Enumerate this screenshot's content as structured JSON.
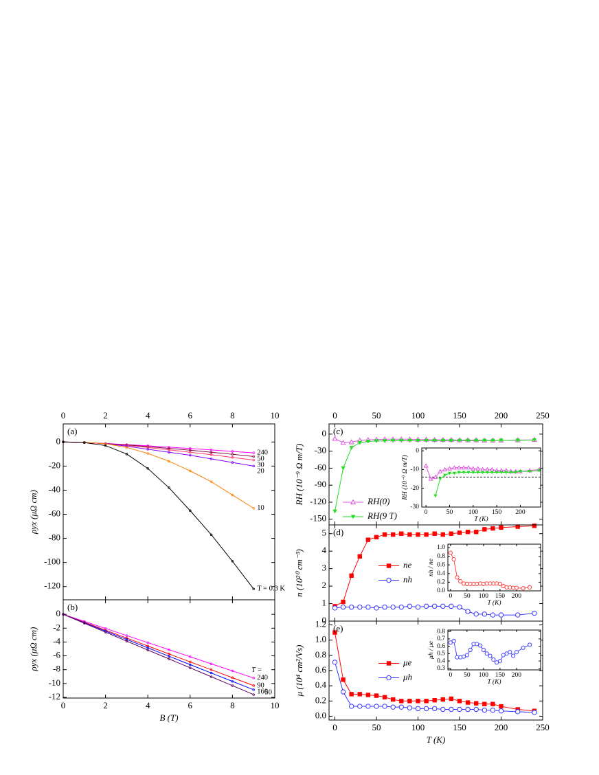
{
  "chart_data": [
    {
      "type": "line",
      "panel_label": "(a)",
      "ylabel": "ρyx (μΩ cm)",
      "x": [
        0,
        1,
        2,
        3,
        4,
        5,
        6,
        7,
        8,
        9
      ],
      "series": [
        {
          "name": "240",
          "color": "#ff00ff",
          "marker": "dot",
          "values": [
            0,
            -0.5,
            -1.2,
            -2.2,
            -3.2,
            -4.3,
            -5.4,
            -6.6,
            -7.8,
            -9
          ]
        },
        {
          "name": "50",
          "color": "#800040",
          "marker": "dot",
          "values": [
            0,
            -0.5,
            -1.3,
            -2.5,
            -3.8,
            -5.3,
            -6.8,
            -8.5,
            -10.2,
            -12
          ]
        },
        {
          "name": "30",
          "color": "#ff3366",
          "marker": "dot",
          "values": [
            0,
            -0.5,
            -1.5,
            -3,
            -4.5,
            -6.5,
            -8.5,
            -10.5,
            -12.8,
            -15
          ]
        },
        {
          "name": "20",
          "color": "#8000ff",
          "marker": "dot",
          "values": [
            0,
            -0.5,
            -1.5,
            -3.5,
            -6,
            -8.5,
            -11,
            -14,
            -17,
            -20
          ]
        },
        {
          "name": "10",
          "color": "#ff8000",
          "marker": "dot",
          "values": [
            0,
            -0.3,
            -1.5,
            -4.5,
            -9.5,
            -16,
            -24,
            -33,
            -44,
            -55
          ]
        },
        {
          "name": "T = 0.3 K",
          "color": "#000000",
          "marker": "dot",
          "values": [
            0,
            -0.5,
            -3,
            -10,
            -22,
            -38,
            -57,
            -77,
            -99,
            -122
          ]
        }
      ],
      "xlim": [
        0,
        10
      ],
      "ylim": [
        -131,
        15
      ],
      "xticks": [
        0,
        2,
        4,
        6,
        8,
        10
      ],
      "yticks": [
        0,
        -20,
        -40,
        -60,
        -80,
        -100,
        -120
      ]
    },
    {
      "type": "line",
      "panel_label": "(b)",
      "ylabel": "ρyx (μΩ cm)",
      "xlabel": "B (T)",
      "annotation": "T =",
      "x": [
        0,
        1,
        2,
        3,
        4,
        5,
        6,
        7,
        8,
        9
      ],
      "series": [
        {
          "name": "240",
          "color": "#ff00ff",
          "marker": "dot",
          "values": [
            0,
            -1.02,
            -2.04,
            -3.07,
            -4.09,
            -5.11,
            -6.13,
            -7.16,
            -8.18,
            -9.2
          ]
        },
        {
          "name": "90",
          "color": "#ff0000",
          "marker": "dot",
          "values": [
            0,
            -1.14,
            -2.29,
            -3.43,
            -4.58,
            -5.72,
            -6.87,
            -8.01,
            -9.16,
            -10.3
          ]
        },
        {
          "name": "160",
          "color": "#0000ff",
          "marker": "dot",
          "values": [
            0,
            -1.21,
            -2.42,
            -3.63,
            -4.84,
            -6.06,
            -7.27,
            -8.48,
            -9.69,
            -10.9
          ]
        },
        {
          "name": "50",
          "color": "#600060",
          "marker": "dot",
          "values": [
            0,
            -1.29,
            -2.58,
            -3.87,
            -5.16,
            -6.44,
            -7.73,
            -9.02,
            -10.31,
            -11.6
          ]
        }
      ],
      "xlim": [
        0,
        10
      ],
      "ylim": [
        -12.1,
        2.1
      ],
      "xticks": [
        0,
        2,
        4,
        6,
        8,
        10
      ],
      "yticks": [
        0,
        -2,
        -4,
        -6,
        -8,
        -10,
        -12
      ]
    },
    {
      "type": "line",
      "panel_label": "(c)",
      "ylabel": "RH (10⁻⁹ Ω m/T)",
      "legend": "lower left",
      "x": [
        0,
        10,
        20,
        30,
        40,
        50,
        60,
        70,
        80,
        90,
        100,
        110,
        120,
        130,
        140,
        150,
        160,
        170,
        180,
        190,
        200,
        220,
        240
      ],
      "series": [
        {
          "name": "RH(0)",
          "color": "#e050e0",
          "marker": "triangle-open",
          "values": [
            -8,
            -15,
            -14,
            -11,
            -10,
            -9.5,
            -9,
            -9,
            -9,
            -9,
            -9.5,
            -9.5,
            -10,
            -10,
            -10,
            -10.5,
            -10.5,
            -10.5,
            -11,
            -11,
            -11,
            -10.5,
            -10
          ]
        },
        {
          "name": "RH(9 T)",
          "color": "#22dd22",
          "marker": "triangle-down",
          "values": [
            -136,
            -60,
            -24,
            -15,
            -13,
            -12,
            -12,
            -11.5,
            -11.5,
            -11.5,
            -11.5,
            -11.5,
            -11.5,
            -11.5,
            -11.5,
            -11.5,
            -11.5,
            -11.5,
            -11.5,
            -11.5,
            -11,
            -11,
            -10.5
          ]
        }
      ],
      "xlim": [
        -7,
        250
      ],
      "ylim": [
        -160,
        18
      ],
      "xticks": [
        0,
        50,
        100,
        150,
        200,
        250
      ],
      "yticks": [
        0,
        -30,
        -60,
        -90,
        -120,
        -150
      ]
    },
    {
      "type": "line",
      "ylabel": "RH (10⁻⁹ Ω m/T)",
      "xlabel": "T (K)",
      "reference_line": -14,
      "x": [
        0,
        10,
        20,
        30,
        40,
        50,
        60,
        70,
        80,
        90,
        100,
        110,
        120,
        130,
        140,
        150,
        160,
        170,
        180,
        190,
        200,
        220,
        240
      ],
      "series": [
        {
          "color": "#e050e0",
          "marker": "triangle-open",
          "values": [
            -8,
            -15,
            -14,
            -11,
            -10,
            -9.5,
            -9,
            -9,
            -9,
            -9,
            -9.5,
            -9.5,
            -10,
            -10,
            -10,
            -10.5,
            -10.5,
            -10.5,
            -11,
            -11,
            -11,
            -10.5,
            -10
          ]
        },
        {
          "color": "#22dd22",
          "marker": "triangle-down",
          "values": [
            null,
            null,
            -24,
            -15,
            -13,
            -12,
            -12,
            -11.5,
            -11.5,
            -11.5,
            -11.5,
            -11.5,
            -11.5,
            -11.5,
            -11.5,
            -11.5,
            -11.5,
            -11.5,
            -11.5,
            -11.5,
            -11,
            -11,
            -10.5
          ]
        }
      ],
      "xlim": [
        -9,
        243
      ],
      "ylim": [
        -30,
        1.5
      ],
      "xticks": [
        0,
        50,
        100,
        150,
        200
      ],
      "yticks": [
        -30,
        -20,
        -10,
        0
      ]
    },
    {
      "type": "line",
      "panel_label": "(d)",
      "ylabel": "n (10²⁰ cm⁻³)",
      "legend": "center left",
      "x": [
        0,
        10,
        20,
        30,
        40,
        50,
        60,
        70,
        80,
        90,
        100,
        110,
        120,
        130,
        140,
        150,
        160,
        170,
        180,
        190,
        200,
        220,
        240
      ],
      "series": [
        {
          "name": "ne",
          "color": "#ff0000",
          "marker": "square",
          "values": [
            0.85,
            1.1,
            2.6,
            3.7,
            4.65,
            4.8,
            4.95,
            4.95,
            5,
            4.95,
            4.95,
            4.95,
            5,
            4.95,
            5,
            5.05,
            5.1,
            5.1,
            5.25,
            5.3,
            5.35,
            5.4,
            5.45
          ]
        },
        {
          "name": "nh",
          "color": "#3333ff",
          "marker": "circle-open",
          "values": [
            0.75,
            0.8,
            0.8,
            0.8,
            0.8,
            0.75,
            0.8,
            0.8,
            0.8,
            0.85,
            0.8,
            0.85,
            0.85,
            0.85,
            0.85,
            0.8,
            0.55,
            0.4,
            0.4,
            0.35,
            0.35,
            0.35,
            0.45
          ]
        }
      ],
      "xlim": [
        -7,
        250
      ],
      "ylim": [
        0,
        5.5
      ],
      "xticks": [
        0,
        50,
        100,
        150,
        200,
        250
      ],
      "yticks": [
        0,
        1,
        2,
        3,
        4,
        5
      ]
    },
    {
      "type": "line",
      "ylabel": "nh / ne",
      "xlabel": "T (K)",
      "x": [
        0,
        10,
        20,
        30,
        40,
        50,
        60,
        70,
        80,
        90,
        100,
        110,
        120,
        130,
        140,
        150,
        160,
        170,
        180,
        190,
        200,
        220,
        240
      ],
      "series": [
        {
          "color": "#ff4444",
          "marker": "circle-open",
          "values": [
            0.88,
            0.73,
            0.31,
            0.22,
            0.17,
            0.16,
            0.16,
            0.16,
            0.16,
            0.17,
            0.16,
            0.17,
            0.17,
            0.17,
            0.17,
            0.16,
            0.11,
            0.08,
            0.08,
            0.07,
            0.07,
            0.06,
            0.08
          ]
        }
      ],
      "xlim": [
        -8,
        273
      ],
      "ylim": [
        0,
        1.08
      ],
      "xticks": [
        0,
        50,
        100,
        150,
        200
      ],
      "yticks": [
        {
          "value": 0,
          "label": "0.0"
        },
        0.2,
        0.4,
        0.6,
        0.8,
        {
          "value": 1,
          "label": "1.0"
        }
      ]
    },
    {
      "type": "line",
      "panel_label": "(e)",
      "ylabel": "μ (10⁴ cm²/Vs)",
      "xlabel": "T (K)",
      "legend": "center left",
      "x": [
        0,
        10,
        20,
        30,
        40,
        50,
        60,
        70,
        80,
        90,
        100,
        110,
        120,
        130,
        140,
        150,
        160,
        170,
        180,
        190,
        200,
        220,
        240
      ],
      "series": [
        {
          "name": "μe",
          "color": "#ff0000",
          "marker": "square",
          "values": [
            1.1,
            0.48,
            0.29,
            0.29,
            0.28,
            0.27,
            0.25,
            0.22,
            0.2,
            0.2,
            0.2,
            0.2,
            0.21,
            0.22,
            0.23,
            0.2,
            0.18,
            0.17,
            0.16,
            0.16,
            0.13,
            0.09,
            0.07
          ]
        },
        {
          "name": "μh",
          "color": "#3333ff",
          "marker": "circle-open",
          "values": [
            0.71,
            0.32,
            0.13,
            0.13,
            0.13,
            0.13,
            0.13,
            0.12,
            0.12,
            0.11,
            0.1,
            0.1,
            0.1,
            0.09,
            0.09,
            0.09,
            0.09,
            0.09,
            0.08,
            0.08,
            0.07,
            0.06,
            0.05
          ]
        }
      ],
      "xlim": [
        -7,
        250
      ],
      "ylim": [
        -0.05,
        1.25
      ],
      "xticks": [
        0,
        50,
        100,
        150,
        200,
        250
      ],
      "yticks": [
        {
          "value": 0,
          "label": "0.0"
        },
        0.2,
        0.4,
        0.6,
        0.8,
        {
          "value": 1,
          "label": "1.0"
        },
        1.2
      ]
    },
    {
      "type": "line",
      "ylabel": "μh / μe",
      "xlabel": "T (K)",
      "x": [
        0,
        10,
        20,
        30,
        40,
        50,
        60,
        70,
        80,
        90,
        100,
        110,
        120,
        130,
        140,
        150,
        160,
        170,
        180,
        190,
        200,
        220,
        240
      ],
      "series": [
        {
          "color": "#4444ff",
          "marker": "circle-open",
          "values": [
            0.65,
            0.67,
            0.45,
            0.45,
            0.46,
            0.48,
            0.55,
            0.63,
            0.63,
            0.61,
            0.55,
            0.5,
            0.47,
            0.42,
            0.38,
            0.4,
            0.48,
            0.5,
            0.52,
            0.47,
            0.52,
            0.58,
            0.62
          ]
        }
      ],
      "xlim": [
        -8,
        273
      ],
      "ylim": [
        0.28,
        0.82
      ],
      "xticks": [
        0,
        50,
        100,
        150,
        200
      ],
      "yticks": [
        0.3,
        0.4,
        0.5,
        0.6,
        0.7,
        0.8
      ]
    }
  ]
}
